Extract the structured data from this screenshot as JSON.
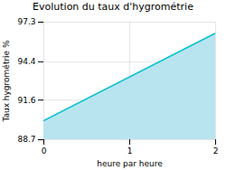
{
  "chart_data": {
    "type": "area",
    "title": "Evolution du taux d'hygrométrie",
    "x_label": "heure par heure",
    "y_label": "Taux hygrométrie %",
    "x": [
      0,
      2
    ],
    "values": [
      90.1,
      96.5
    ],
    "baseline": 88.7,
    "colors": [
      "#b8e4f0",
      "#00c0d0"
    ],
    "xlim": [
      0,
      2
    ],
    "xticks": [
      0,
      1,
      2
    ],
    "ylim": [
      88.7,
      97.3
    ],
    "yticks": [
      88.7,
      91.6,
      94.4,
      97.3
    ],
    "grid": true
  }
}
